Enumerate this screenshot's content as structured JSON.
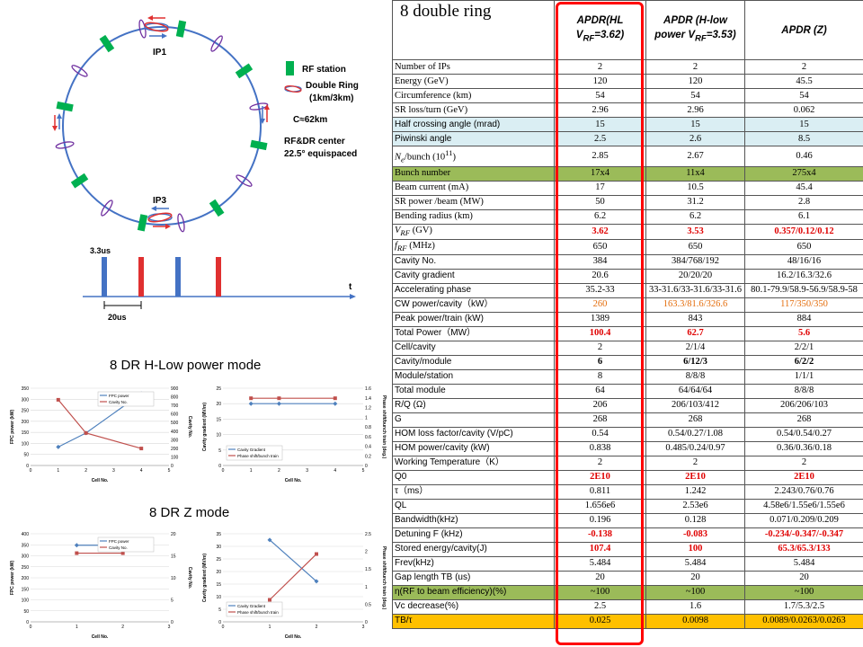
{
  "ring": {
    "ip1": "IP1",
    "ip3": "IP3",
    "legend": {
      "rf_station": "RF station",
      "double_ring": "Double Ring",
      "double_ring_size": "(1km/3km)",
      "circumference": "C≈62km",
      "rf_dr_center": "RF&DR center",
      "equispaced": "22.5°  equispaced"
    }
  },
  "timing": {
    "pulse_width": "3.3us",
    "axis_t": "t",
    "period": "20us"
  },
  "modes": {
    "h_low": "8 DR H-Low power mode",
    "z": "8 DR Z mode"
  },
  "charts": {
    "h_fpc": {
      "y_label": "FPC power (kW)",
      "y2_label": "Cavity No.",
      "x_label": "Cell No.",
      "series": [
        "FPC power",
        "Cavity No."
      ],
      "x_ticks": [
        "0",
        "1",
        "2",
        "3",
        "4",
        "5"
      ],
      "y_ticks": [
        "0",
        "50",
        "100",
        "150",
        "200",
        "250",
        "300",
        "350"
      ],
      "y2_ticks": [
        "0",
        "100",
        "200",
        "300",
        "400",
        "500",
        "600",
        "700",
        "800",
        "900"
      ]
    },
    "h_grad": {
      "y_label": "Cavity gradient (MV/m)",
      "y2_label": "Phase shift/bunch train (deg.)",
      "x_label": "Cell No.",
      "series": [
        "Cavity Gradient",
        "Phase shift/bunch train"
      ],
      "x_ticks": [
        "0",
        "1",
        "2",
        "3",
        "4",
        "5"
      ],
      "y_ticks": [
        "0",
        "5",
        "10",
        "15",
        "20",
        "25"
      ],
      "y2_ticks": [
        "0",
        "0.2",
        "0.4",
        "0.6",
        "0.8",
        "1",
        "1.2",
        "1.4",
        "1.6"
      ]
    },
    "z_fpc": {
      "y_label": "FPC power (kW)",
      "y2_label": "Cavity No.",
      "x_label": "Cell No.",
      "series": [
        "FPC power",
        "Cavity No."
      ],
      "x_ticks": [
        "0",
        "1",
        "2",
        "3"
      ],
      "y_ticks": [
        "0",
        "50",
        "100",
        "150",
        "200",
        "250",
        "300",
        "350",
        "400"
      ],
      "y2_ticks": [
        "0",
        "5",
        "10",
        "15",
        "20"
      ]
    },
    "z_grad": {
      "y_label": "Cavity gradient (MV/m)",
      "y2_label": "Phase shift/bunch train (deg.)",
      "x_label": "Cell No.",
      "series": [
        "Cavity Gradient",
        "Phase shift/bunch train"
      ],
      "x_ticks": [
        "0",
        "1",
        "2",
        "3"
      ],
      "y_ticks": [
        "0",
        "5",
        "10",
        "15",
        "20",
        "25",
        "30",
        "35"
      ],
      "y2_ticks": [
        "0",
        "0.5",
        "1",
        "1.5",
        "2",
        "2.5"
      ]
    }
  },
  "table": {
    "corner": "8 double ring",
    "col_hl": "APDR(HL V",
    "col_hl_sub": "RF",
    "col_hl_tail": "=3.62)",
    "col_h": "APDR (H-low power V",
    "col_h_sub": "RF",
    "col_h_tail": "=3.53)",
    "col_z": "APDR (Z)",
    "rows": [
      {
        "label": "Number of IPs",
        "v": [
          "2",
          "2",
          "2"
        ]
      },
      {
        "label": "Energy (GeV)",
        "v": [
          "120",
          "120",
          "45.5"
        ]
      },
      {
        "label": "Circumference (km)",
        "v": [
          "54",
          "54",
          "54"
        ]
      },
      {
        "label": "SR loss/turn (GeV)",
        "v": [
          "2.96",
          "2.96",
          "0.062"
        ]
      },
      {
        "label": "Half crossing angle (mrad)",
        "v": [
          "15",
          "15",
          "15"
        ]
      },
      {
        "label": "Piwinski angle",
        "v": [
          "2.5",
          "2.6",
          "8.5"
        ]
      },
      {
        "label": "N",
        "sub": "e",
        "tail": "/bunch (10",
        "sup": "11",
        "tail2": ")",
        "v": [
          "2.85",
          "2.67",
          "0.46"
        ]
      },
      {
        "label": "Bunch number",
        "v": [
          "17x4",
          "11x4",
          "275x4"
        ]
      },
      {
        "label": "Beam current (mA)",
        "v": [
          "17",
          "10.5",
          "45.4"
        ]
      },
      {
        "label": "SR power /beam (MW)",
        "v": [
          "50",
          "31.2",
          "2.8"
        ]
      },
      {
        "label": "Bending radius (km)",
        "v": [
          "6.2",
          "6.2",
          "6.1"
        ]
      },
      {
        "label": "V",
        "sub": "RF",
        "tail": " (GV)",
        "v": [
          "3.62",
          "3.53",
          "0.357/0.12/0.12"
        ]
      },
      {
        "label": "f",
        "sub": "RF",
        "tail": " (MHz)",
        "v": [
          "650",
          "650",
          "650"
        ]
      },
      {
        "label": "Cavity No.",
        "v": [
          "384",
          "384/768/192",
          "48/16/16"
        ]
      },
      {
        "label": "Cavity gradient",
        "v": [
          "20.6",
          "20/20/20",
          "16.2/16.3/32.6"
        ]
      },
      {
        "label": "Accelerating phase",
        "v": [
          "35.2-33",
          "33-31.6/33-31.6/33-31.6",
          "80.1-79.9/58.9-56.9/58.9-58"
        ]
      },
      {
        "label": "CW power/cavity（kW）",
        "v": [
          "260",
          "163.3/81.6/326.6",
          "117/350/350"
        ]
      },
      {
        "label": "Peak power/train (kW)",
        "v": [
          "1389",
          "843",
          "884"
        ]
      },
      {
        "label": "Total Power（MW）",
        "v": [
          "100.4",
          "62.7",
          "5.6"
        ]
      },
      {
        "label": "Cell/cavity",
        "v": [
          "2",
          "2/1/4",
          "2/2/1"
        ]
      },
      {
        "label": "Cavity/module",
        "v": [
          "6",
          "6/12/3",
          "6/2/2"
        ]
      },
      {
        "label": "Module/station",
        "v": [
          "8",
          "8/8/8",
          "1/1/1"
        ]
      },
      {
        "label": "Total  module",
        "v": [
          "64",
          "64/64/64",
          "8/8/8"
        ]
      },
      {
        "label": "R/Q (Ω)",
        "v": [
          "206",
          "206/103/412",
          "206/206/103"
        ]
      },
      {
        "label": "G",
        "v": [
          "268",
          "268",
          "268"
        ]
      },
      {
        "label": "HOM loss factor/cavity (V/pC)",
        "v": [
          "0.54",
          "0.54/0.27/1.08",
          "0.54/0.54/0.27"
        ]
      },
      {
        "label": "HOM power/cavity (kW)",
        "v": [
          "0.838",
          "0.485/0.24/0.97",
          "0.36/0.36/0.18"
        ]
      },
      {
        "label": "Working Temperature（K）",
        "v": [
          "2",
          "2",
          "2"
        ]
      },
      {
        "label": "Q0",
        "v": [
          "2E10",
          "2E10",
          "2E10"
        ]
      },
      {
        "label": "τ（ms）",
        "v": [
          "0.811",
          "1.242",
          "2.243/0.76/0.76"
        ]
      },
      {
        "label": "QL",
        "v": [
          "1.656e6",
          "2.53e6",
          "4.58e6/1.55e6/1.55e6"
        ]
      },
      {
        "label": "Bandwidth(kHz)",
        "v": [
          "0.196",
          "0.128",
          "0.071/0.209/0.209"
        ]
      },
      {
        "label": "Detuning F (kHz)",
        "v": [
          "-0.138",
          "-0.083",
          "-0.234/-0.347/-0.347"
        ]
      },
      {
        "label": "Stored energy/cavity(J)",
        "v": [
          "107.4",
          "100",
          "65.3/65.3/133"
        ]
      },
      {
        "label": "Frev(kHz)",
        "v": [
          "5.484",
          "5.484",
          "5.484"
        ]
      },
      {
        "label": "Gap length TB (us)",
        "v": [
          "20",
          "20",
          "20"
        ]
      },
      {
        "label": "η(RF to beam efficiency)(%)",
        "v": [
          "~100",
          "~100",
          "~100"
        ]
      },
      {
        "label": "Vc decrease(%)",
        "v": [
          "2.5",
          "1.6",
          "1.7/5.3/2.5"
        ]
      },
      {
        "label": "TB/τ",
        "v": [
          "0.025",
          "0.0098",
          "0.0089/0.0263/0.0263"
        ]
      }
    ]
  }
}
